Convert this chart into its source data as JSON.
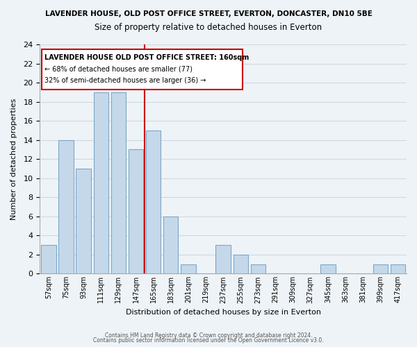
{
  "title_main": "LAVENDER HOUSE, OLD POST OFFICE STREET, EVERTON, DONCASTER, DN10 5BE",
  "title_sub": "Size of property relative to detached houses in Everton",
  "xlabel": "Distribution of detached houses by size in Everton",
  "ylabel": "Number of detached properties",
  "bar_labels": [
    "57sqm",
    "75sqm",
    "93sqm",
    "111sqm",
    "129sqm",
    "147sqm",
    "165sqm",
    "183sqm",
    "201sqm",
    "219sqm",
    "237sqm",
    "255sqm",
    "273sqm",
    "291sqm",
    "309sqm",
    "327sqm",
    "345sqm",
    "363sqm",
    "381sqm",
    "399sqm",
    "417sqm"
  ],
  "bar_values": [
    3,
    14,
    11,
    19,
    19,
    13,
    15,
    6,
    1,
    0,
    3,
    2,
    1,
    0,
    0,
    0,
    1,
    0,
    0,
    1,
    1
  ],
  "bar_color": "#c5d8ea",
  "bar_edge_color": "#7aa8c8",
  "grid_color": "#d0d8e0",
  "background_color": "#eef3f7",
  "redline_x": 6,
  "annotation_title": "LAVENDER HOUSE OLD POST OFFICE STREET: 160sqm",
  "annotation_line1": "← 68% of detached houses are smaller (77)",
  "annotation_line2": "32% of semi-detached houses are larger (36) →",
  "annotation_box_color": "#ffffff",
  "annotation_border_color": "#cc0000",
  "redline_color": "#cc0000",
  "ylim": [
    0,
    24
  ],
  "yticks": [
    0,
    2,
    4,
    6,
    8,
    10,
    12,
    14,
    16,
    18,
    20,
    22,
    24
  ],
  "footer1": "Contains HM Land Registry data © Crown copyright and database right 2024.",
  "footer2": "Contains public sector information licensed under the Open Government Licence v3.0."
}
